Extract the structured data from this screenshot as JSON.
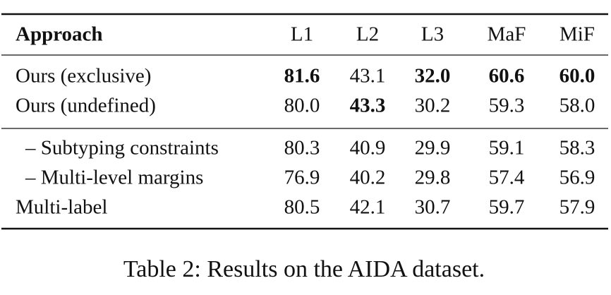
{
  "table": {
    "header": [
      "Approach",
      "L1",
      "L2",
      "L3",
      "MaF",
      "MiF"
    ],
    "rows": [
      [
        "Ours (exclusive)",
        "81.6",
        "43.1",
        "32.0",
        "60.6",
        "60.0"
      ],
      [
        "Ours (undefined)",
        "80.0",
        "43.3",
        "30.2",
        "59.3",
        "58.0"
      ],
      [
        "– Subtyping constraints",
        "80.3",
        "40.9",
        "29.9",
        "59.1",
        "58.3"
      ],
      [
        "– Multi-level margins",
        "76.9",
        "40.2",
        "29.8",
        "57.4",
        "56.9"
      ],
      [
        "Multi-label",
        "80.5",
        "42.1",
        "30.7",
        "59.7",
        "57.9"
      ]
    ]
  },
  "caption": "Table 2: Results on the AIDA dataset."
}
